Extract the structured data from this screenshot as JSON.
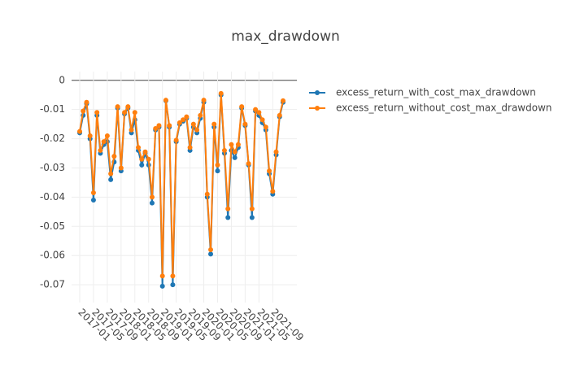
{
  "chart_data": {
    "type": "line",
    "title": "max_drawdown",
    "x": [
      "2017-01",
      "2017-02",
      "2017-03",
      "2017-04",
      "2017-05",
      "2017-06",
      "2017-07",
      "2017-08",
      "2017-09",
      "2017-10",
      "2017-11",
      "2017-12",
      "2018-01",
      "2018-02",
      "2018-03",
      "2018-04",
      "2018-05",
      "2018-06",
      "2018-07",
      "2018-08",
      "2018-09",
      "2018-10",
      "2018-11",
      "2018-12",
      "2019-01",
      "2019-02",
      "2019-03",
      "2019-04",
      "2019-05",
      "2019-06",
      "2019-07",
      "2019-08",
      "2019-09",
      "2019-10",
      "2019-11",
      "2019-12",
      "2020-01",
      "2020-02",
      "2020-03",
      "2020-04",
      "2020-05",
      "2020-06",
      "2020-07",
      "2020-08",
      "2020-09",
      "2020-10",
      "2020-11",
      "2020-12",
      "2021-01",
      "2021-02",
      "2021-03",
      "2021-04",
      "2021-05",
      "2021-06",
      "2021-07",
      "2021-08",
      "2021-09",
      "2021-10",
      "2021-11",
      "2021-12"
    ],
    "series": [
      {
        "name": "excess_return_with_cost_max_drawdown",
        "color": "#1f77b4",
        "values": [
          -0.018,
          -0.012,
          -0.008,
          -0.02,
          -0.041,
          -0.012,
          -0.025,
          -0.022,
          -0.021,
          -0.034,
          -0.028,
          -0.0095,
          -0.031,
          -0.0115,
          -0.0095,
          -0.018,
          -0.0135,
          -0.024,
          -0.029,
          -0.025,
          -0.029,
          -0.042,
          -0.017,
          -0.016,
          -0.0705,
          -0.007,
          -0.016,
          -0.07,
          -0.021,
          -0.015,
          -0.014,
          -0.013,
          -0.024,
          -0.016,
          -0.018,
          -0.013,
          -0.0075,
          -0.04,
          -0.0595,
          -0.016,
          -0.031,
          -0.005,
          -0.025,
          -0.047,
          -0.024,
          -0.0265,
          -0.023,
          -0.0095,
          -0.0155,
          -0.029,
          -0.047,
          -0.0105,
          -0.012,
          -0.0145,
          -0.017,
          -0.032,
          -0.039,
          -0.0255,
          -0.0125,
          -0.0075
        ]
      },
      {
        "name": "excess_return_without_cost_max_drawdown",
        "color": "#ff7f0e",
        "values": [
          -0.0175,
          -0.0105,
          -0.0075,
          -0.019,
          -0.0385,
          -0.011,
          -0.024,
          -0.021,
          -0.019,
          -0.032,
          -0.026,
          -0.009,
          -0.03,
          -0.011,
          -0.009,
          -0.017,
          -0.011,
          -0.023,
          -0.027,
          -0.0245,
          -0.027,
          -0.04,
          -0.0165,
          -0.0155,
          -0.067,
          -0.0068,
          -0.0155,
          -0.067,
          -0.0205,
          -0.0145,
          -0.0135,
          -0.0125,
          -0.023,
          -0.015,
          -0.017,
          -0.012,
          -0.0068,
          -0.039,
          -0.058,
          -0.015,
          -0.029,
          -0.0045,
          -0.024,
          -0.044,
          -0.022,
          -0.0245,
          -0.022,
          -0.009,
          -0.015,
          -0.0285,
          -0.044,
          -0.01,
          -0.011,
          -0.0135,
          -0.016,
          -0.031,
          -0.038,
          -0.0245,
          -0.012,
          -0.007
        ]
      }
    ],
    "xticks": [
      "2017-01",
      "2017-05",
      "2017-09",
      "2018-01",
      "2018-05",
      "2018-09",
      "2019-01",
      "2019-05",
      "2019-09",
      "2020-01",
      "2020-05",
      "2020-09",
      "2021-01",
      "2021-05",
      "2021-09"
    ],
    "ylim": [
      -0.0761,
      0.003
    ],
    "yticks": [
      0,
      -0.01,
      -0.02,
      -0.03,
      -0.04,
      -0.05,
      -0.06,
      -0.07
    ],
    "grid": true,
    "legend": "right"
  }
}
